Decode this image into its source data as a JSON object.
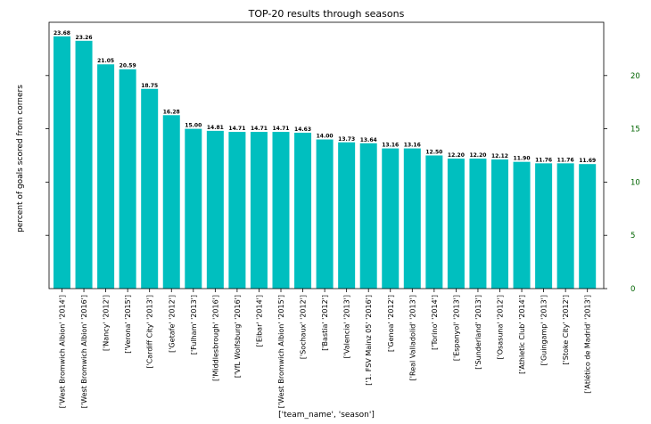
{
  "chart_data": {
    "type": "bar",
    "title": "TOP-20 results through seasons",
    "xlabel": "['team_name', 'season']",
    "ylabel": "percent of goals scored from corners",
    "ylim": [
      0,
      25
    ],
    "right_axis_ticks": [
      0,
      5,
      10,
      15,
      20
    ],
    "colors": {
      "bar": "#00bfbf",
      "right_axis": "#006400"
    },
    "categories": [
      "['West Bromwich Albion' '2014']",
      "['West Bromwich Albion' '2016']",
      "['Nancy' '2012']",
      "['Verona' '2015']",
      "['Cardiff City' '2013']",
      "['Getafe' '2012']",
      "['Fulham' '2013']",
      "['Middlesbrough' '2016']",
      "['VfL Wolfsburg' '2016']",
      "['Eibar' '2014']",
      "['West Bromwich Albion' '2015']",
      "['Sochaux' '2012']",
      "['Bastia' '2012']",
      "['Valencia' '2013']",
      "['1. FSV Mainz 05' '2016']",
      "['Genoa' '2012']",
      "['Real Valladolid' '2013']",
      "['Torino' '2014']",
      "['Espanyol' '2013']",
      "['Sunderland' '2013']",
      "['Osasuna' '2012']",
      "['Athletic Club' '2014']",
      "['Guingamp' '2013']",
      "['Stoke City' '2012']",
      "['Atlético de Madrid' '2013']"
    ],
    "values": [
      23.68,
      23.26,
      21.05,
      20.59,
      18.75,
      16.28,
      15.0,
      14.81,
      14.71,
      14.71,
      14.71,
      14.63,
      14.0,
      13.73,
      13.64,
      13.16,
      13.16,
      12.5,
      12.2,
      12.2,
      12.12,
      11.9,
      11.76,
      11.76,
      11.69
    ],
    "value_labels": [
      "23.68",
      "23.26",
      "21.05",
      "20.59",
      "18.75",
      "16.28",
      "15.00",
      "14.81",
      "14.71",
      "14.71",
      "14.71",
      "14.63",
      "14.00",
      "13.73",
      "13.64",
      "13.16",
      "13.16",
      "12.50",
      "12.20",
      "12.20",
      "12.12",
      "11.90",
      "11.76",
      "11.76",
      "11.69"
    ]
  }
}
